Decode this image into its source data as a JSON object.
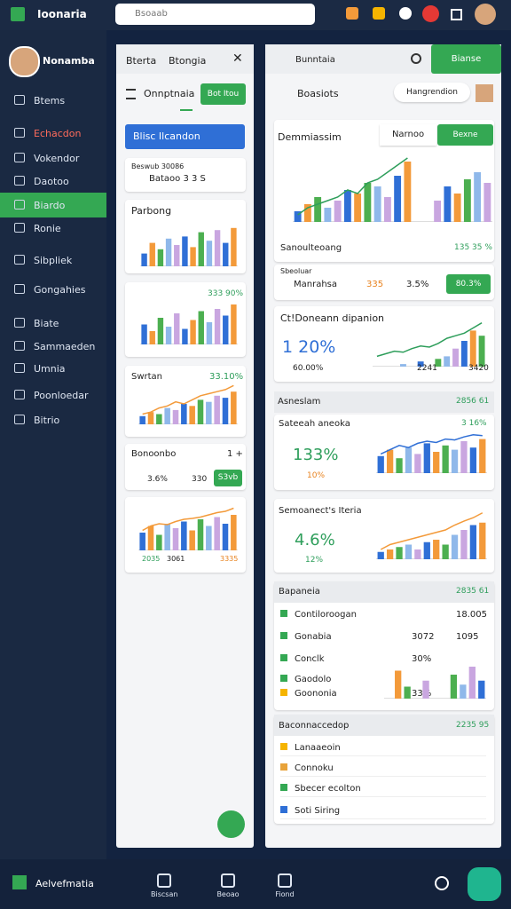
{
  "topbar": {
    "brand": "Ioonaria",
    "search": "Bsoaab"
  },
  "sidebar": {
    "user": "Nonamba",
    "items": [
      "Btems",
      "Echacdon",
      "Vokendor",
      "Daotoo",
      "Biardo",
      "Ronie",
      "Sibpliek",
      "Gongahies",
      "Biate",
      "Sammaeden",
      "Umnia",
      "Poonloedar",
      "Bitrio"
    ]
  },
  "palette": [
    "#2f6fd6",
    "#f39a3a",
    "#4caf50",
    "#8fb8ea",
    "#c9a6e0"
  ],
  "middle": {
    "tabs": [
      "Bterta",
      "Btongia"
    ],
    "heading": "Onnptnaia",
    "heading_button": "Bot Itou",
    "primary_button": "Blisc Ilcandon",
    "card1": {
      "caption": "Beswub 30086",
      "text": "Bataoo 3 3 S"
    },
    "card2": {
      "title": "Parbong",
      "chart": {
        "ylim": [
          0,
          100
        ],
        "values": [
          30,
          55,
          40,
          65,
          50,
          70,
          45,
          80,
          60,
          85,
          55,
          90
        ]
      }
    },
    "card3": {
      "value": "333 90%",
      "chart": {
        "ylim": [
          0,
          100
        ],
        "values": [
          45,
          30,
          60,
          40,
          70,
          35,
          55,
          75,
          50,
          80,
          65,
          90
        ]
      }
    },
    "card4": {
      "title": "Swrtan",
      "value": "33.10%",
      "chart": {
        "ylim": [
          0,
          100
        ],
        "values": [
          20,
          30,
          25,
          40,
          35,
          50,
          45,
          60,
          55,
          70,
          65,
          80
        ],
        "line": [
          25,
          30,
          40,
          45,
          55,
          50,
          60,
          70,
          75,
          80,
          85,
          95
        ],
        "line_color": "#f39a3a"
      }
    },
    "card5": {
      "title": "Bonoonbo",
      "value": "1 +",
      "stat1": "3.6%",
      "stat2": "330",
      "button": "S3vb"
    },
    "card6": {
      "chart": {
        "ylim": [
          0,
          100
        ],
        "values": [
          40,
          55,
          35,
          60,
          50,
          65,
          45,
          70,
          55,
          75,
          60,
          80
        ],
        "line": [
          45,
          55,
          60,
          58,
          65,
          70,
          72,
          75,
          80,
          85,
          88,
          95
        ],
        "line_color": "#f39a3a"
      },
      "labels": [
        "2035",
        "3061",
        "3335"
      ]
    }
  },
  "right": {
    "title": "Bunntaia",
    "header_button": "Bianse",
    "heading": "Boasiots",
    "pill": "Hangrendion",
    "overview": {
      "title": "Demmiassim",
      "pill": "Narnoo",
      "button": "Bexne",
      "subtitle": "Sanoulteoang",
      "value": "135 35 %",
      "chart": {
        "ylim": [
          0,
          100
        ],
        "values": [
          15,
          25,
          35,
          20,
          30,
          45,
          40,
          55,
          50,
          35,
          65,
          85,
          0,
          0,
          30,
          50,
          40,
          60,
          70,
          55
        ],
        "line": [
          10,
          20,
          25,
          30,
          35,
          45,
          40,
          55,
          60,
          70,
          80,
          90,
          null,
          null,
          null,
          null,
          null,
          null,
          null,
          null
        ],
        "line_color": "#2e9e5b"
      }
    },
    "stats": {
      "caption": "Sbeoluar",
      "label": "Manrahsa",
      "stat1": "335",
      "stat2": "3.5%",
      "button": "80.3%"
    },
    "growth": {
      "title": "Ct!Doneann dipanion",
      "value": "1 20%",
      "foot": [
        "60.00%",
        "2241",
        "3420"
      ],
      "chart": {
        "ylim": [
          0,
          100
        ],
        "values": [
          0,
          0,
          0,
          5,
          0,
          10,
          0,
          15,
          20,
          35,
          50,
          70,
          60
        ],
        "line": [
          20,
          25,
          30,
          28,
          35,
          40,
          38,
          45,
          55,
          60,
          65,
          75,
          85
        ],
        "line_color": "#2e9e5b"
      }
    },
    "section1": {
      "title": "Asneslam",
      "value": "2856 61"
    },
    "card_a": {
      "title": "Sateeah aneoka",
      "value": "133%",
      "sub": "10%",
      "right_value": "3 16%",
      "chart": {
        "ylim": [
          0,
          100
        ],
        "values": [
          40,
          55,
          35,
          60,
          45,
          70,
          50,
          65,
          55,
          75,
          60,
          80
        ],
        "line": [
          45,
          55,
          65,
          60,
          70,
          75,
          72,
          80,
          78,
          85,
          90,
          88
        ],
        "line_color": "#2f6fd6"
      }
    },
    "card_b": {
      "title": "Semoanect's Iteria",
      "value": "4.6%",
      "sub": "12%",
      "chart": {
        "ylim": [
          0,
          100
        ],
        "values": [
          15,
          20,
          25,
          30,
          20,
          35,
          40,
          30,
          50,
          60,
          70,
          75
        ],
        "line": [
          20,
          30,
          35,
          40,
          45,
          50,
          55,
          60,
          70,
          78,
          85,
          95
        ],
        "line_color": "#f39a3a"
      }
    },
    "section2": {
      "title": "Bapaneia",
      "value": "2835 61",
      "rows": [
        [
          "Contiloroogan",
          "",
          "18.005"
        ],
        [
          "Gonabia",
          "3072",
          "1095"
        ],
        [
          "Conclk",
          "30%",
          ""
        ],
        [
          "Gaodolo",
          "",
          ""
        ],
        [
          "Goononia",
          "33%",
          ""
        ]
      ],
      "chart": {
        "ylim": [
          0,
          100
        ],
        "values": [
          0,
          70,
          30,
          0,
          45,
          0,
          0,
          60,
          35,
          80,
          45
        ]
      }
    },
    "section3": {
      "title": "Baconnaccedop",
      "value": "2235 95",
      "rows": [
        "Lanaaeoin",
        "Connoku",
        "Sbecer ecolton",
        "Soti Siring"
      ]
    }
  },
  "bottombar": {
    "brand": "Aelvefmatia",
    "tabs": [
      "Biscsan",
      "Beoao",
      "Fiond"
    ]
  }
}
